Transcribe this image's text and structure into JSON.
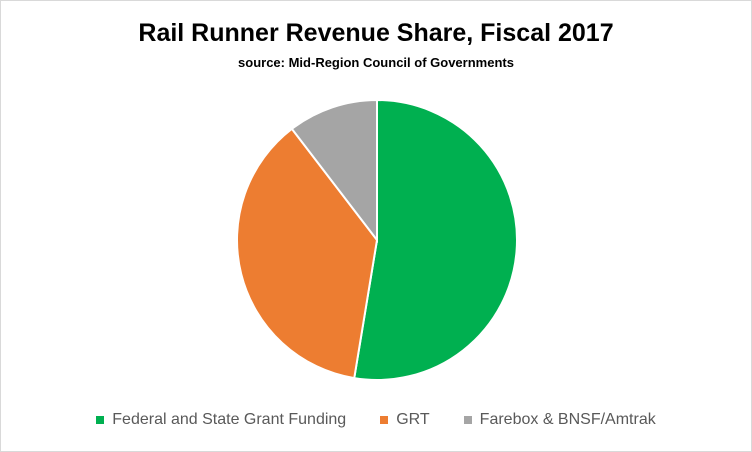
{
  "chart_data": {
    "type": "pie",
    "title": "Rail Runner Revenue Share, Fiscal 2017",
    "subtitle": "source: Mid-Region Council of Governments",
    "legend_position": "bottom",
    "slices": [
      {
        "label": "Federal and State Grant Funding",
        "value": 52.6,
        "color": "#00b050"
      },
      {
        "label": "GRT",
        "value": 37.0,
        "color": "#ed7d31"
      },
      {
        "label": "Farebox & BNSF/Amtrak",
        "value": 10.4,
        "color": "#a5a5a5"
      }
    ]
  }
}
